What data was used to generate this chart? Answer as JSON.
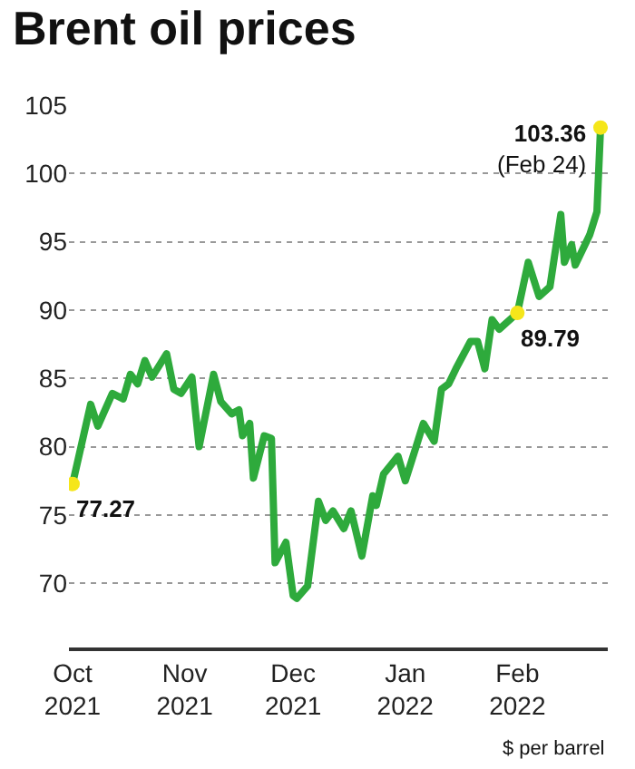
{
  "chart_data": {
    "type": "line",
    "title": "Brent oil prices",
    "x": [
      "2021-10-01",
      "2021-10-06",
      "2021-10-08",
      "2021-10-12",
      "2021-10-15",
      "2021-10-17",
      "2021-10-19",
      "2021-10-21",
      "2021-10-23",
      "2021-10-27",
      "2021-10-29",
      "2021-10-31",
      "2021-11-03",
      "2021-11-05",
      "2021-11-09",
      "2021-11-11",
      "2021-11-14",
      "2021-11-16",
      "2021-11-17",
      "2021-11-19",
      "2021-11-20",
      "2021-11-23",
      "2021-11-25",
      "2021-11-26",
      "2021-11-29",
      "2021-12-01",
      "2021-12-02",
      "2021-12-05",
      "2021-12-08",
      "2021-12-10",
      "2021-12-12",
      "2021-12-15",
      "2021-12-17",
      "2021-12-20",
      "2021-12-23",
      "2021-12-24",
      "2021-12-26",
      "2021-12-30",
      "2022-01-01",
      "2022-01-04",
      "2022-01-06",
      "2022-01-09",
      "2022-01-11",
      "2022-01-13",
      "2022-01-15",
      "2022-01-19",
      "2022-01-21",
      "2022-01-23",
      "2022-01-25",
      "2022-01-27",
      "2022-02-01",
      "2022-02-04",
      "2022-02-07",
      "2022-02-10",
      "2022-02-13",
      "2022-02-14",
      "2022-02-16",
      "2022-02-17",
      "2022-02-21",
      "2022-02-23",
      "2022-02-24"
    ],
    "series": [
      {
        "color": "#2eaa3c",
        "values": [
          77.27,
          83.1,
          81.5,
          83.9,
          83.5,
          85.3,
          84.6,
          86.3,
          85.1,
          86.8,
          84.2,
          83.9,
          85.1,
          80.0,
          85.3,
          83.3,
          82.4,
          82.7,
          80.8,
          81.7,
          77.7,
          80.8,
          80.6,
          71.5,
          73.0,
          69.1,
          68.9,
          69.8,
          76.0,
          74.6,
          75.3,
          74.0,
          75.3,
          72.0,
          76.4,
          75.7,
          78.0,
          79.3,
          77.5,
          80.0,
          81.7,
          80.4,
          84.2,
          84.6,
          85.7,
          87.7,
          87.7,
          85.7,
          89.3,
          88.6,
          89.79,
          93.5,
          91.0,
          91.7,
          97.0,
          93.5,
          94.8,
          93.3,
          95.5,
          97.2,
          103.36
        ]
      }
    ],
    "xlim": [
      "2021-09-30",
      "2022-02-26"
    ],
    "xticks": [
      {
        "value": "2021-10-01",
        "label": "Oct\n2021"
      },
      {
        "value": "2021-11-01",
        "label": "Nov\n2021"
      },
      {
        "value": "2021-12-01",
        "label": "Dec\n2021"
      },
      {
        "value": "2022-01-01",
        "label": "Jan\n2022"
      },
      {
        "value": "2022-02-01",
        "label": "Feb\n2022"
      }
    ],
    "ylim": [
      65.3,
      105
    ],
    "yticks": [
      70,
      75,
      80,
      85,
      90,
      95,
      100,
      105
    ],
    "grid": "y",
    "marker": "none",
    "line_style": "solid",
    "annotations": [
      {
        "text": "77.27",
        "x": "2021-10-01",
        "y": 77.27
      },
      {
        "text": "89.79",
        "x": "2022-02-01",
        "y": 89.79
      },
      {
        "text": "103.36\n(Feb 24)",
        "x": "2022-02-24",
        "y": 103.36
      },
      "$ per barrel"
    ]
  }
}
